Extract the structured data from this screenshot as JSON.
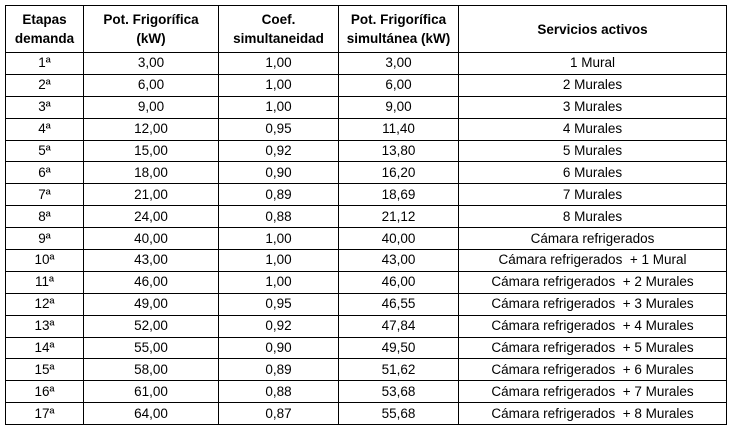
{
  "table": {
    "header": [
      [
        "Etapas",
        "demanda"
      ],
      [
        "Pot. Frigorífica",
        "(kW)"
      ],
      [
        "Coef.",
        "simultaneidad"
      ],
      [
        "Pot. Frigorífica",
        "simultánea (kW)"
      ],
      [
        "Servicios activos"
      ]
    ],
    "rows": [
      [
        "1ª",
        "3,00",
        "1,00",
        "3,00",
        "1 Mural"
      ],
      [
        "2ª",
        "6,00",
        "1,00",
        "6,00",
        "2 Murales"
      ],
      [
        "3ª",
        "9,00",
        "1,00",
        "9,00",
        "3 Murales"
      ],
      [
        "4ª",
        "12,00",
        "0,95",
        "11,40",
        "4 Murales"
      ],
      [
        "5ª",
        "15,00",
        "0,92",
        "13,80",
        "5 Murales"
      ],
      [
        "6ª",
        "18,00",
        "0,90",
        "16,20",
        "6 Murales"
      ],
      [
        "7ª",
        "21,00",
        "0,89",
        "18,69",
        "7 Murales"
      ],
      [
        "8ª",
        "24,00",
        "0,88",
        "21,12",
        "8 Murales"
      ],
      [
        "9ª",
        "40,00",
        "1,00",
        "40,00",
        "Cámara refrigerados"
      ],
      [
        "10ª",
        "43,00",
        "1,00",
        "43,00",
        "Cámara refrigerados  + 1 Mural"
      ],
      [
        "11ª",
        "46,00",
        "1,00",
        "46,00",
        "Cámara refrigerados  + 2 Murales"
      ],
      [
        "12ª",
        "49,00",
        "0,95",
        "46,55",
        "Cámara refrigerados  + 3 Murales"
      ],
      [
        "13ª",
        "52,00",
        "0,92",
        "47,84",
        "Cámara refrigerados  + 4 Murales"
      ],
      [
        "14ª",
        "55,00",
        "0,90",
        "49,50",
        "Cámara refrigerados  + 5 Murales"
      ],
      [
        "15ª",
        "58,00",
        "0,89",
        "51,62",
        "Cámara refrigerados  + 6 Murales"
      ],
      [
        "16ª",
        "61,00",
        "0,88",
        "53,68",
        "Cámara refrigerados  + 7 Murales"
      ],
      [
        "17ª",
        "64,00",
        "0,87",
        "55,68",
        "Cámara refrigerados  + 8 Murales"
      ]
    ]
  }
}
